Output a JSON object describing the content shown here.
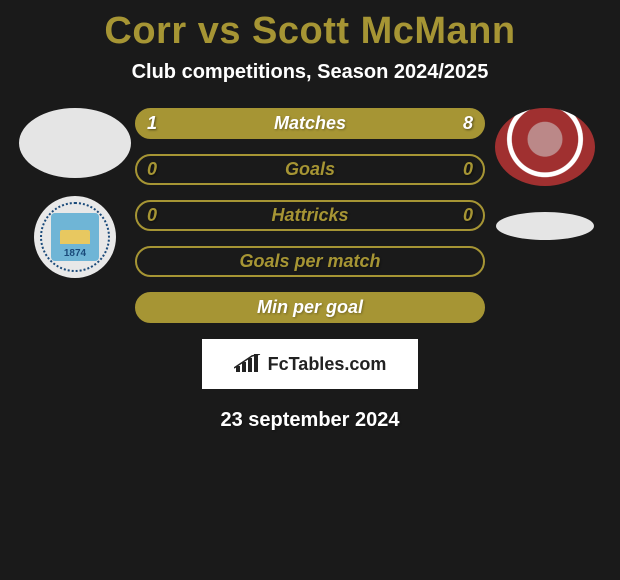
{
  "title": "Corr vs Scott McMann",
  "subtitle": "Club competitions, Season 2024/2025",
  "bars": [
    {
      "label": "Matches",
      "left": "1",
      "right": "8",
      "bg": "#a69534",
      "border": "#a69534",
      "text": "#ffffff"
    },
    {
      "label": "Goals",
      "left": "0",
      "right": "0",
      "bg": "transparent",
      "border": "#a69534",
      "text": "#a69534"
    },
    {
      "label": "Hattricks",
      "left": "0",
      "right": "0",
      "bg": "transparent",
      "border": "#a69534",
      "text": "#a69534"
    },
    {
      "label": "Goals per match",
      "left": "",
      "right": "",
      "bg": "transparent",
      "border": "#a69534",
      "text": "#a69534"
    },
    {
      "label": "Min per goal",
      "left": "",
      "right": "",
      "bg": "#a69534",
      "border": "#a69534",
      "text": "#ffffff"
    }
  ],
  "footer_logo": "FcTables.com",
  "date": "23 september 2024",
  "left_badge_year": "1874",
  "colors": {
    "accent": "#a69534",
    "bg": "#1a1a1a"
  }
}
